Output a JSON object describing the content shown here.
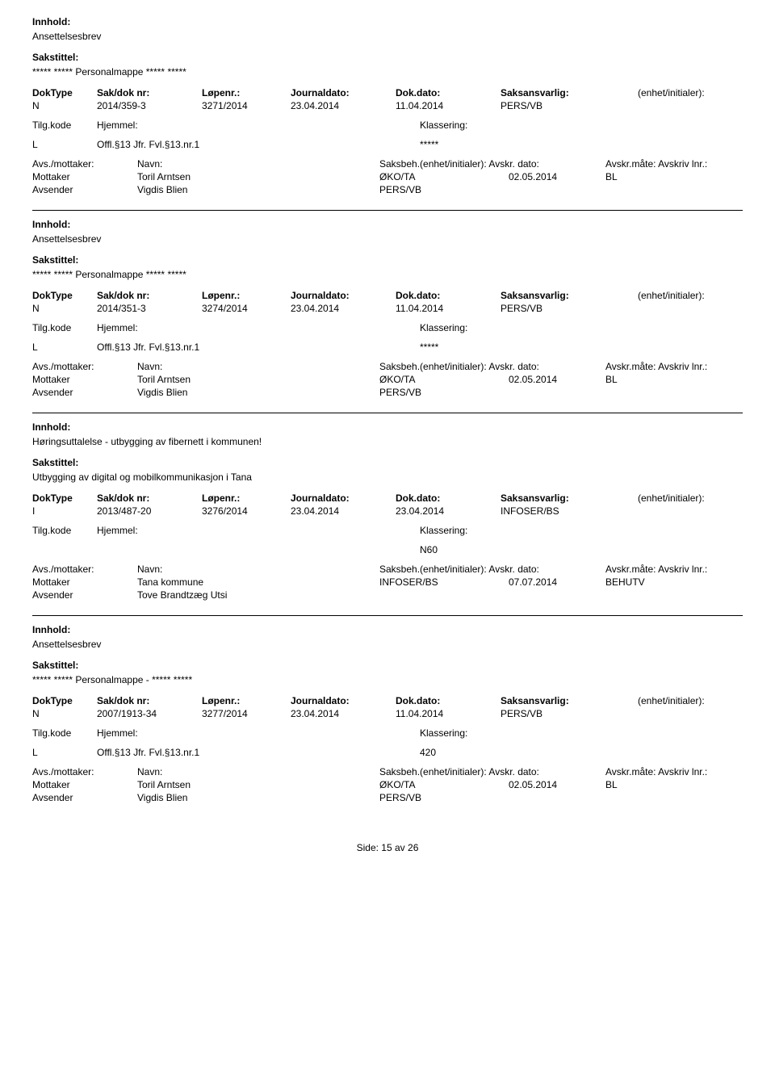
{
  "labels": {
    "innhold": "Innhold:",
    "sakstittel": "Sakstittel:",
    "dokType": "DokType",
    "sakDokNr": "Sak/dok nr:",
    "lopenr": "Løpenr.:",
    "journaldato": "Journaldato:",
    "dokDato": "Dok.dato:",
    "saksansvarlig": "Saksansvarlig:",
    "enhetInitialer": "(enhet/initialer):",
    "tilgKode": "Tilg.kode",
    "hjemmel": "Hjemmel:",
    "klassering": "Klassering:",
    "avsMottaker": "Avs./mottaker:",
    "navn": "Navn:",
    "saksbehEnhet": "Saksbeh.(enhet/initialer):",
    "avskrDato": "Avskr. dato:",
    "avskrMate": "Avskr.måte:",
    "avskrivLnr": "Avskriv lnr.:",
    "mottaker": "Mottaker",
    "avsender": "Avsender",
    "side": "Side:",
    "av": "av"
  },
  "records": [
    {
      "innhold": "Ansettelsesbrev",
      "sakstittel": "***** ***** Personalmappe ***** *****",
      "dokType": "N",
      "sakDokNr": "2014/359-3",
      "lopenr": "3271/2014",
      "journaldato": "23.04.2014",
      "dokDato": "11.04.2014",
      "saksansvarlig": "PERS/VB",
      "tilgKode": "L",
      "hjemmel": "Offl.§13 Jfr. Fvl.§13.nr.1",
      "klassering": "*****",
      "parties": [
        {
          "role": "Mottaker",
          "name": "Toril Arntsen",
          "saksbeh": "ØKO/TA",
          "avskrDato": "02.05.2014",
          "avskrMate": "BL"
        },
        {
          "role": "Avsender",
          "name": "Vigdis Blien",
          "saksbeh": "PERS/VB",
          "avskrDato": "",
          "avskrMate": ""
        }
      ]
    },
    {
      "innhold": "Ansettelsesbrev",
      "sakstittel": "***** ***** Personalmappe ***** *****",
      "dokType": "N",
      "sakDokNr": "2014/351-3",
      "lopenr": "3274/2014",
      "journaldato": "23.04.2014",
      "dokDato": "11.04.2014",
      "saksansvarlig": "PERS/VB",
      "tilgKode": "L",
      "hjemmel": "Offl.§13 Jfr. Fvl.§13.nr.1",
      "klassering": "*****",
      "parties": [
        {
          "role": "Mottaker",
          "name": "Toril Arntsen",
          "saksbeh": "ØKO/TA",
          "avskrDato": "02.05.2014",
          "avskrMate": "BL"
        },
        {
          "role": "Avsender",
          "name": "Vigdis Blien",
          "saksbeh": "PERS/VB",
          "avskrDato": "",
          "avskrMate": ""
        }
      ]
    },
    {
      "innhold": "Høringsuttalelse - utbygging av fibernett i kommunen!",
      "sakstittel": "Utbygging av digital og mobilkommunikasjon i Tana",
      "dokType": "I",
      "sakDokNr": "2013/487-20",
      "lopenr": "3276/2014",
      "journaldato": "23.04.2014",
      "dokDato": "23.04.2014",
      "saksansvarlig": "INFOSER/BS",
      "tilgKode": "",
      "hjemmel": "",
      "klassering": "N60",
      "parties": [
        {
          "role": "Mottaker",
          "name": "Tana kommune",
          "saksbeh": "INFOSER/BS",
          "avskrDato": "07.07.2014",
          "avskrMate": "BEHUTV"
        },
        {
          "role": "Avsender",
          "name": "Tove Brandtzæg Utsi",
          "saksbeh": "",
          "avskrDato": "",
          "avskrMate": ""
        }
      ]
    },
    {
      "innhold": "Ansettelsesbrev",
      "sakstittel": "***** ***** Personalmappe - ***** *****",
      "dokType": "N",
      "sakDokNr": "2007/1913-34",
      "lopenr": "3277/2014",
      "journaldato": "23.04.2014",
      "dokDato": "11.04.2014",
      "saksansvarlig": "PERS/VB",
      "tilgKode": "L",
      "hjemmel": "Offl.§13 Jfr. Fvl.§13.nr.1",
      "klassering": "420",
      "parties": [
        {
          "role": "Mottaker",
          "name": "Toril Arntsen",
          "saksbeh": "ØKO/TA",
          "avskrDato": "02.05.2014",
          "avskrMate": "BL"
        },
        {
          "role": "Avsender",
          "name": "Vigdis Blien",
          "saksbeh": "PERS/VB",
          "avskrDato": "",
          "avskrMate": ""
        }
      ]
    }
  ],
  "footer": {
    "page": "15",
    "total": "26"
  }
}
